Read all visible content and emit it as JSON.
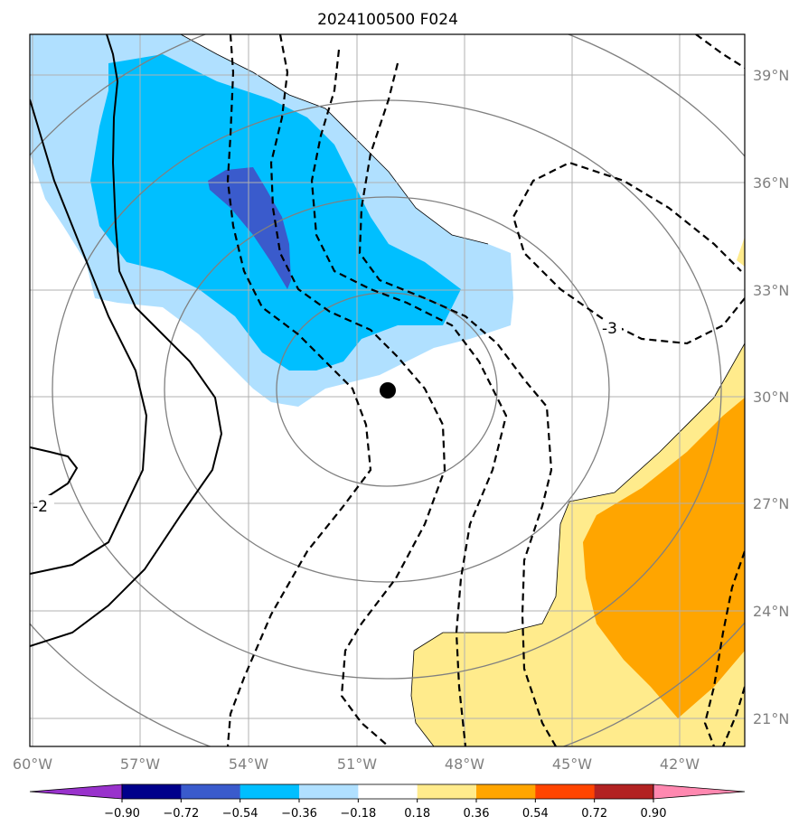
{
  "title": "2024100500 F024",
  "map": {
    "lon_range": [
      -60,
      -40
    ],
    "lat_range": [
      20,
      40
    ],
    "lon_ticks": [
      "60°W",
      "57°W",
      "54°W",
      "51°W",
      "48°W",
      "45°W",
      "42°W"
    ],
    "lat_ticks": [
      "39°N",
      "36°N",
      "33°N",
      "30°N",
      "27°N",
      "24°N",
      "21°N"
    ],
    "grid": true,
    "storm_center": {
      "lon": -50.9,
      "lat": 30.2,
      "marker": "filled-circle"
    },
    "contour_labels": [
      "-3",
      "-2"
    ]
  },
  "colorbar": {
    "tick_labels": [
      "−0.90",
      "−0.72",
      "−0.54",
      "−0.36",
      "−0.18",
      "0.18",
      "0.36",
      "0.54",
      "0.72",
      "0.90"
    ],
    "colors": [
      "#9932CC",
      "#00008B",
      "#3A5BCC",
      "#00BFFF",
      "#B0E0FF",
      "#FFFFFF",
      "#FFEB8C",
      "#FFA500",
      "#FF4500",
      "#B22222",
      "#FF88B0"
    ],
    "extend": "both"
  }
}
